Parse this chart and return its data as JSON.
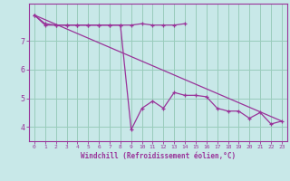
{
  "xlabel": "Windchill (Refroidissement éolien,°C)",
  "background_color": "#c8e8e8",
  "line_color": "#993399",
  "grid_color": "#99ccbb",
  "xlim": [
    -0.5,
    23.5
  ],
  "ylim": [
    3.5,
    8.3
  ],
  "yticks": [
    4,
    5,
    6,
    7
  ],
  "xticks": [
    0,
    1,
    2,
    3,
    4,
    5,
    6,
    7,
    8,
    9,
    10,
    11,
    12,
    13,
    14,
    15,
    16,
    17,
    18,
    19,
    20,
    21,
    22,
    23
  ],
  "line1_x": [
    0,
    1,
    2,
    3,
    4,
    5,
    6,
    7,
    8,
    9,
    10,
    11,
    12,
    13,
    14
  ],
  "line1_y": [
    7.9,
    7.6,
    7.55,
    7.55,
    7.55,
    7.55,
    7.55,
    7.55,
    7.55,
    7.55,
    7.6,
    7.55,
    7.55,
    7.55,
    7.6
  ],
  "line2_x": [
    0,
    1,
    2,
    3,
    4,
    5,
    6,
    7,
    8,
    9,
    10,
    11,
    12,
    13,
    14,
    15,
    16,
    17,
    18,
    19,
    20,
    21,
    22,
    23
  ],
  "line2_y": [
    7.9,
    7.55,
    7.55,
    7.55,
    7.55,
    7.55,
    7.55,
    7.55,
    7.55,
    3.9,
    4.65,
    4.9,
    4.65,
    5.2,
    5.1,
    5.1,
    5.05,
    4.65,
    4.55,
    4.55,
    4.3,
    4.5,
    4.1,
    4.2
  ],
  "line3_x": [
    0,
    23
  ],
  "line3_y": [
    7.9,
    4.2
  ]
}
